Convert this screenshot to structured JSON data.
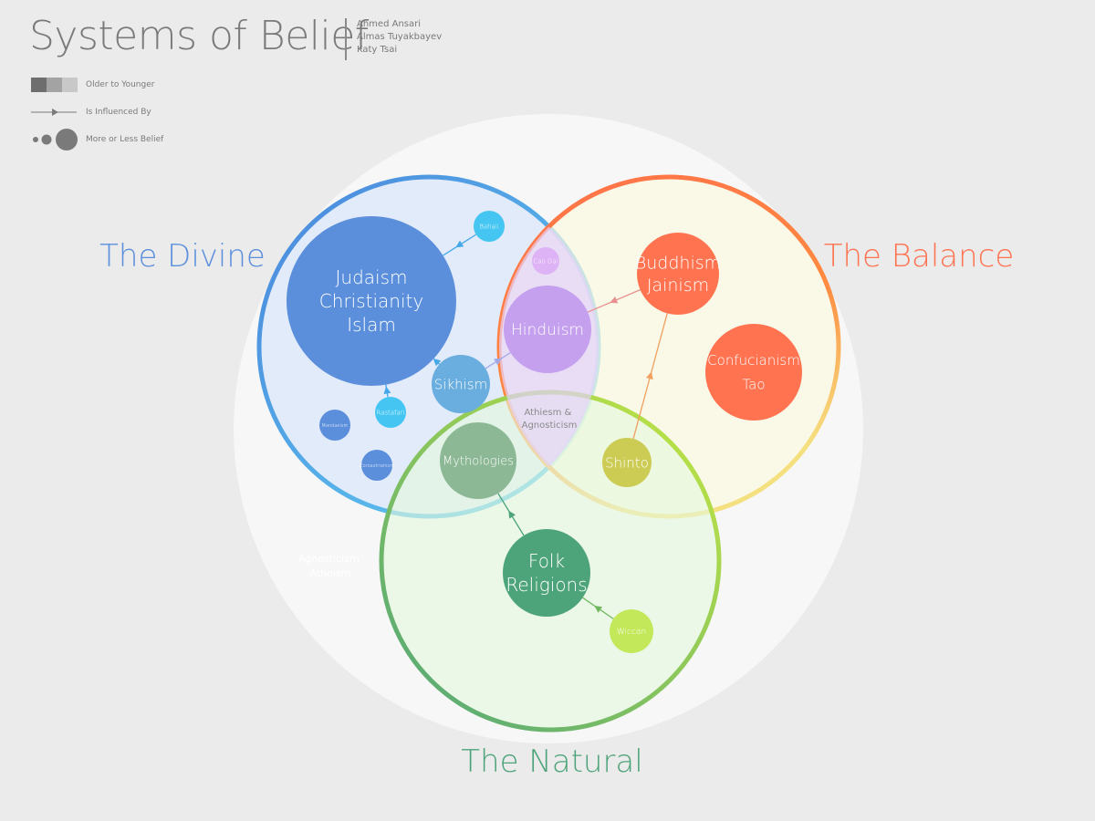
{
  "header": {
    "title": "Systems of Belief",
    "authors": [
      "Ahmed Ansari",
      "Almas Tuyakbayev",
      "Katy Tsai"
    ]
  },
  "legend": {
    "age": "Older to Younger",
    "influence": "Is Influenced By",
    "size": "More or Less Belief",
    "age_colors": [
      "#6e6e6e",
      "#a3a3a3",
      "#c8c8c8"
    ]
  },
  "groups": {
    "divine": {
      "label": "The Divine",
      "color": "#5b8fdc"
    },
    "balance": {
      "label": "The Balance",
      "color": "#ff7351"
    },
    "natural": {
      "label": "The Natural",
      "color": "#4ea47a"
    }
  },
  "outside_label": [
    "Agnosticism",
    "Atheism"
  ],
  "center_label": [
    "Athiesm &",
    "Agnosticism"
  ],
  "nodes": [
    {
      "id": "abrahamic",
      "lines": [
        "Judaism",
        "Christianity",
        "Islam"
      ],
      "color": "#5b8fdc"
    },
    {
      "id": "bahaii",
      "lines": [
        "Bahaii"
      ],
      "color": "#45c6f2"
    },
    {
      "id": "caodai",
      "lines": [
        "Cao Dai"
      ],
      "color": "#deb3f5"
    },
    {
      "id": "hinduism",
      "lines": [
        "Hinduism"
      ],
      "color": "#c5a0ef"
    },
    {
      "id": "buddhism",
      "lines": [
        "Buddhism",
        "Jainism"
      ],
      "color": "#ff7351"
    },
    {
      "id": "confucianism",
      "lines": [
        "Confucianism",
        "Tao"
      ],
      "color": "#ff7351"
    },
    {
      "id": "sikhism",
      "lines": [
        "Sikhism"
      ],
      "color": "#6aaee0"
    },
    {
      "id": "rastafari",
      "lines": [
        "Rastafari"
      ],
      "color": "#45c6f2"
    },
    {
      "id": "mandaeism",
      "lines": [
        "Mandaeism"
      ],
      "color": "#5b8fdc"
    },
    {
      "id": "zoroastrianism",
      "lines": [
        "Zoroastrianism"
      ],
      "color": "#5b8fdc"
    },
    {
      "id": "mythologies",
      "lines": [
        "Mythologies"
      ],
      "color": "#8db896"
    },
    {
      "id": "shinto",
      "lines": [
        "Shinto"
      ],
      "color": "#cccc55"
    },
    {
      "id": "folk",
      "lines": [
        "Folk",
        "Religions"
      ],
      "color": "#4ea47a"
    },
    {
      "id": "wiccan",
      "lines": [
        "Wiccan"
      ],
      "color": "#c3e85a"
    }
  ],
  "influences": [
    {
      "from": "bahaii",
      "to": "abrahamic",
      "color": "#45a8e8"
    },
    {
      "from": "rastafari",
      "to": "abrahamic",
      "color": "#45a8e8"
    },
    {
      "from": "sikhism",
      "to": "abrahamic",
      "color": "#45a8e8"
    },
    {
      "from": "sikhism",
      "to": "hinduism",
      "color": "#a0a8e8"
    },
    {
      "from": "buddhism",
      "to": "hinduism",
      "color": "#e89090"
    },
    {
      "from": "shinto",
      "to": "buddhism",
      "color": "#f0a060"
    },
    {
      "from": "folk",
      "to": "mythologies",
      "color": "#4ea47a"
    },
    {
      "from": "wiccan",
      "to": "folk",
      "color": "#70b860"
    }
  ]
}
